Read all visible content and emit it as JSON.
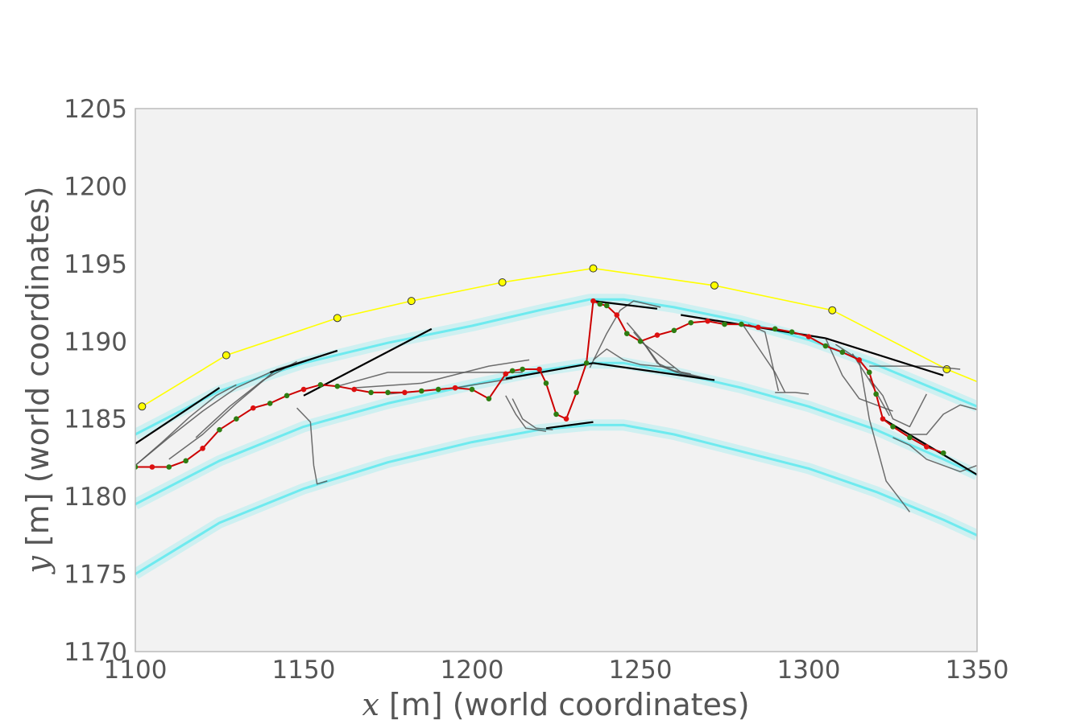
{
  "chart_data": {
    "type": "line",
    "xlabel": {
      "var": "x",
      "rest": " [m] (world coordinates)"
    },
    "ylabel": {
      "var": "y",
      "rest": " [m] (world coordinates)"
    },
    "xlim": [
      1100,
      1350
    ],
    "ylim": [
      1170,
      1205
    ],
    "xticks": [
      1100,
      1150,
      1200,
      1250,
      1300,
      1350
    ],
    "yticks": [
      1170,
      1175,
      1180,
      1185,
      1190,
      1195,
      1200,
      1205
    ],
    "grid": false,
    "colors": {
      "background": "#f2f2f2",
      "frame": "#bbbbbb",
      "lanes": "#4de8ee",
      "waypoints": "#ffff00",
      "candidates": "#555555",
      "selected": "#000000",
      "trajectory": "#cc0000",
      "trajectory_dots_green": "#2e7d12",
      "trajectory_dots_red": "#dd1010"
    },
    "series": [
      {
        "role": "lane",
        "x": [
          1100,
          1125,
          1150,
          1175,
          1200,
          1220,
          1235,
          1245,
          1260,
          1280,
          1300,
          1320,
          1340,
          1350
        ],
        "y": [
          1184.0,
          1186.8,
          1188.6,
          1189.9,
          1191.0,
          1192.0,
          1192.7,
          1192.7,
          1192.2,
          1191.3,
          1190.1,
          1188.5,
          1186.7,
          1185.8
        ]
      },
      {
        "role": "lane",
        "x": [
          1100,
          1125,
          1150,
          1175,
          1200,
          1220,
          1235,
          1245,
          1260,
          1280,
          1300,
          1320,
          1340,
          1350
        ],
        "y": [
          1179.5,
          1182.3,
          1184.5,
          1186.0,
          1187.2,
          1188.1,
          1188.6,
          1188.6,
          1188.0,
          1187.0,
          1185.8,
          1184.3,
          1182.4,
          1181.4
        ]
      },
      {
        "role": "lane",
        "x": [
          1100,
          1125,
          1150,
          1175,
          1200,
          1220,
          1235,
          1245,
          1260,
          1280,
          1300,
          1320,
          1340,
          1350
        ],
        "y": [
          1175.0,
          1178.3,
          1180.5,
          1182.2,
          1183.5,
          1184.3,
          1184.6,
          1184.6,
          1184.0,
          1182.9,
          1181.8,
          1180.3,
          1178.5,
          1177.5
        ]
      },
      {
        "role": "waypoints",
        "x": [
          1102,
          1127,
          1160,
          1182,
          1209,
          1236,
          1272,
          1307,
          1341,
          1350
        ],
        "y": [
          1185.8,
          1189.1,
          1191.5,
          1192.6,
          1193.8,
          1194.7,
          1193.6,
          1192.0,
          1188.2,
          1187.4
        ],
        "markers": [
          true,
          true,
          true,
          true,
          true,
          true,
          true,
          true,
          true,
          false
        ]
      },
      {
        "role": "trajectory",
        "x": [
          1100,
          1105,
          1110,
          1115,
          1120,
          1125,
          1130,
          1135,
          1140,
          1145,
          1150,
          1155,
          1160,
          1165,
          1170,
          1175,
          1180,
          1185,
          1190,
          1195,
          1200,
          1205,
          1210,
          1212,
          1215,
          1220,
          1222,
          1225,
          1228,
          1231,
          1234,
          1236,
          1238,
          1240,
          1243,
          1246,
          1250,
          1255,
          1260,
          1265,
          1270,
          1275,
          1280,
          1285,
          1290,
          1295,
          1300,
          1305,
          1310,
          1315,
          1318,
          1320,
          1322,
          1325,
          1330,
          1335,
          1340
        ],
        "y": [
          1181.9,
          1181.9,
          1181.9,
          1182.3,
          1183.1,
          1184.3,
          1185.0,
          1185.7,
          1186.0,
          1186.5,
          1186.9,
          1187.2,
          1187.1,
          1186.9,
          1186.7,
          1186.7,
          1186.7,
          1186.8,
          1186.9,
          1187.0,
          1186.9,
          1186.3,
          1187.9,
          1188.1,
          1188.2,
          1188.2,
          1187.3,
          1185.3,
          1185.0,
          1186.7,
          1188.6,
          1192.6,
          1192.4,
          1192.3,
          1191.7,
          1190.5,
          1190.0,
          1190.4,
          1190.7,
          1191.2,
          1191.3,
          1191.1,
          1191.1,
          1190.9,
          1190.8,
          1190.6,
          1190.3,
          1189.7,
          1189.3,
          1188.8,
          1188.0,
          1186.6,
          1185.0,
          1184.5,
          1183.8,
          1183.2,
          1182.8
        ]
      },
      {
        "role": "selected",
        "segments": [
          {
            "x": [
              1100,
              1125
            ],
            "y": [
              1183.4,
              1187.0
            ]
          },
          {
            "x": [
              1140,
              1160
            ],
            "y": [
              1188.0,
              1189.4
            ]
          },
          {
            "x": [
              1150,
              1188
            ],
            "y": [
              1186.5,
              1190.8
            ]
          },
          {
            "x": [
              1210,
              1236
            ],
            "y": [
              1187.6,
              1188.6
            ]
          },
          {
            "x": [
              1222,
              1236
            ],
            "y": [
              1184.4,
              1184.8
            ]
          },
          {
            "x": [
              1236,
              1272
            ],
            "y": [
              1188.6,
              1187.5
            ]
          },
          {
            "x": [
              1236,
              1255
            ],
            "y": [
              1192.6,
              1192.1
            ]
          },
          {
            "x": [
              1262,
              1305
            ],
            "y": [
              1191.7,
              1190.2
            ]
          },
          {
            "x": [
              1305,
              1340
            ],
            "y": [
              1190.2,
              1187.8
            ]
          },
          {
            "x": [
              1322,
              1350
            ],
            "y": [
              1185.0,
              1181.4
            ]
          }
        ]
      },
      {
        "role": "candidates",
        "segments": [
          {
            "x": [
              1100,
              1108,
              1116,
              1124,
              1130
            ],
            "y": [
              1182.0,
              1183.5,
              1185.1,
              1186.5,
              1187.2
            ]
          },
          {
            "x": [
              1100,
              1110,
              1120,
              1130,
              1140
            ],
            "y": [
              1182.0,
              1183.8,
              1185.5,
              1187.0,
              1188.0
            ]
          },
          {
            "x": [
              1110,
              1120,
              1130,
              1142,
              1160
            ],
            "y": [
              1182.4,
              1184.0,
              1186.0,
              1188.2,
              1189.4
            ]
          },
          {
            "x": [
              1118,
              1128,
              1138,
              1148
            ],
            "y": [
              1183.8,
              1185.8,
              1187.5,
              1188.7
            ]
          },
          {
            "x": [
              1148,
              1152,
              1153,
              1154,
              1157
            ],
            "y": [
              1185.7,
              1184.8,
              1182.0,
              1180.8,
              1181.0
            ]
          },
          {
            "x": [
              1160,
              1175,
              1195,
              1215
            ],
            "y": [
              1187.1,
              1188.0,
              1188.0,
              1188.0
            ]
          },
          {
            "x": [
              1165,
              1185,
              1205,
              1217
            ],
            "y": [
              1187.0,
              1187.3,
              1188.4,
              1188.8
            ]
          },
          {
            "x": [
              1175,
              1195,
              1212
            ],
            "y": [
              1186.6,
              1187.0,
              1187.6
            ]
          },
          {
            "x": [
              1210,
              1213,
              1216,
              1222
            ],
            "y": [
              1186.5,
              1185.3,
              1184.4,
              1184.2
            ]
          },
          {
            "x": [
              1212,
              1215,
              1219,
              1224
            ],
            "y": [
              1186.3,
              1185.0,
              1184.4,
              1184.3
            ]
          },
          {
            "x": [
              1235,
              1240,
              1244,
              1248,
              1256
            ],
            "y": [
              1188.3,
              1190.5,
              1192.0,
              1192.6,
              1192.2
            ]
          },
          {
            "x": [
              1236,
              1240,
              1245,
              1250,
              1260
            ],
            "y": [
              1188.8,
              1189.5,
              1188.8,
              1188.5,
              1188.3
            ]
          },
          {
            "x": [
              1246,
              1250,
              1255,
              1260,
              1265
            ],
            "y": [
              1191.2,
              1190.2,
              1188.6,
              1188.1,
              1187.9
            ]
          },
          {
            "x": [
              1248,
              1252,
              1256,
              1262,
              1272
            ],
            "y": [
              1190.6,
              1189.6,
              1188.4,
              1187.9,
              1187.5
            ]
          },
          {
            "x": [
              1250,
              1255,
              1262,
              1270
            ],
            "y": [
              1190.0,
              1189.2,
              1188.0,
              1187.6
            ]
          },
          {
            "x": [
              1282,
              1287,
              1291
            ],
            "y": [
              1191.1,
              1190.6,
              1186.8
            ]
          },
          {
            "x": [
              1280,
              1285,
              1290,
              1293
            ],
            "y": [
              1191.2,
              1189.6,
              1188.0,
              1186.7
            ]
          },
          {
            "x": [
              1290,
              1292,
              1296,
              1300
            ],
            "y": [
              1186.7,
              1186.7,
              1186.7,
              1186.6
            ]
          },
          {
            "x": [
              1305,
              1310,
              1315,
              1325
            ],
            "y": [
              1190.2,
              1187.8,
              1186.3,
              1185.5
            ]
          },
          {
            "x": [
              1308,
              1315,
              1318,
              1323,
              1330
            ],
            "y": [
              1189.8,
              1188.8,
              1185.0,
              1181.0,
              1179.0
            ]
          },
          {
            "x": [
              1313,
              1318,
              1324
            ],
            "y": [
              1189.2,
              1187.5,
              1185.2
            ]
          },
          {
            "x": [
              1318,
              1322,
              1325,
              1330,
              1335
            ],
            "y": [
              1187.6,
              1186.5,
              1185.0,
              1184.5,
              1186.6
            ]
          },
          {
            "x": [
              1330,
              1335,
              1340,
              1345,
              1350
            ],
            "y": [
              1184.0,
              1184.0,
              1185.3,
              1185.9,
              1185.6
            ]
          },
          {
            "x": [
              1325,
              1330,
              1335,
              1345,
              1350
            ],
            "y": [
              1183.8,
              1183.3,
              1182.4,
              1181.6,
              1182.0
            ]
          },
          {
            "x": [
              1318,
              1326,
              1336,
              1345
            ],
            "y": [
              1188.4,
              1188.4,
              1188.4,
              1188.2
            ]
          }
        ]
      }
    ]
  }
}
